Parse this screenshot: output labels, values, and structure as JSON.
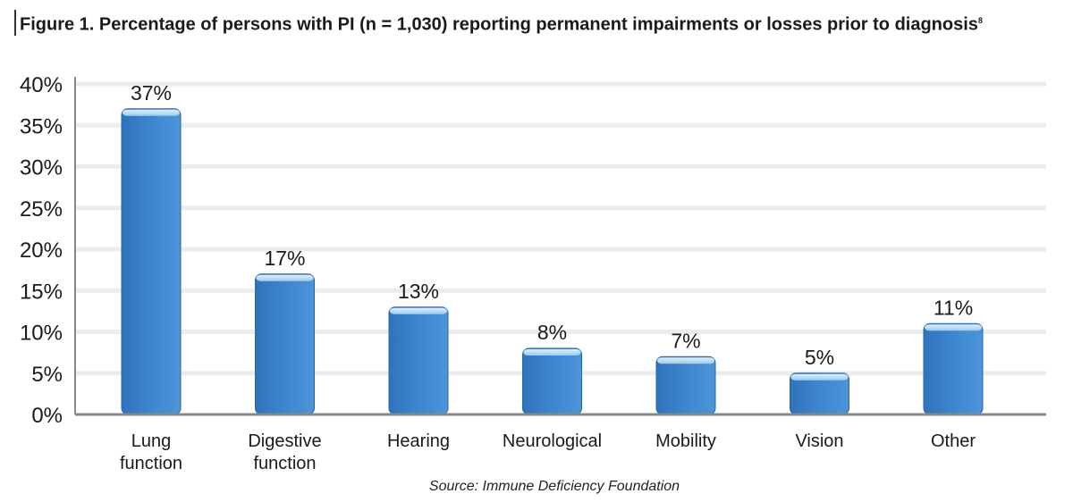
{
  "figure": {
    "title": "Figure 1.  Percentage of persons with PI (n = 1,030) reporting permanent impairments or losses prior to diagnosis",
    "title_superscript": "8",
    "source": "Source:  Immune Deficiency Foundation"
  },
  "chart_data": {
    "type": "bar",
    "title": "Figure 1.  Percentage of persons with PI (n = 1,030) reporting permanent impairments or losses prior to diagnosis",
    "categories": [
      [
        "Lung",
        "function"
      ],
      [
        "Digestive",
        "function"
      ],
      [
        "Hearing"
      ],
      [
        "Neurological"
      ],
      [
        "Mobility"
      ],
      [
        "Vision"
      ],
      [
        "Other"
      ]
    ],
    "values": [
      37,
      17,
      13,
      8,
      7,
      5,
      11
    ],
    "value_labels": [
      "37%",
      "17%",
      "13%",
      "8%",
      "7%",
      "5%",
      "11%"
    ],
    "ylim": [
      0,
      40
    ],
    "yticks": [
      0,
      5,
      10,
      15,
      20,
      25,
      30,
      35,
      40
    ],
    "ytick_labels": [
      "0%",
      "5%",
      "10%",
      "15%",
      "20%",
      "25%",
      "30%",
      "35%",
      "40%"
    ],
    "grid": true,
    "colors": {
      "bar": "#3a7fc4",
      "bar_top": "#bfe0f8",
      "grid": "#ececec",
      "axis": "#888888"
    }
  }
}
